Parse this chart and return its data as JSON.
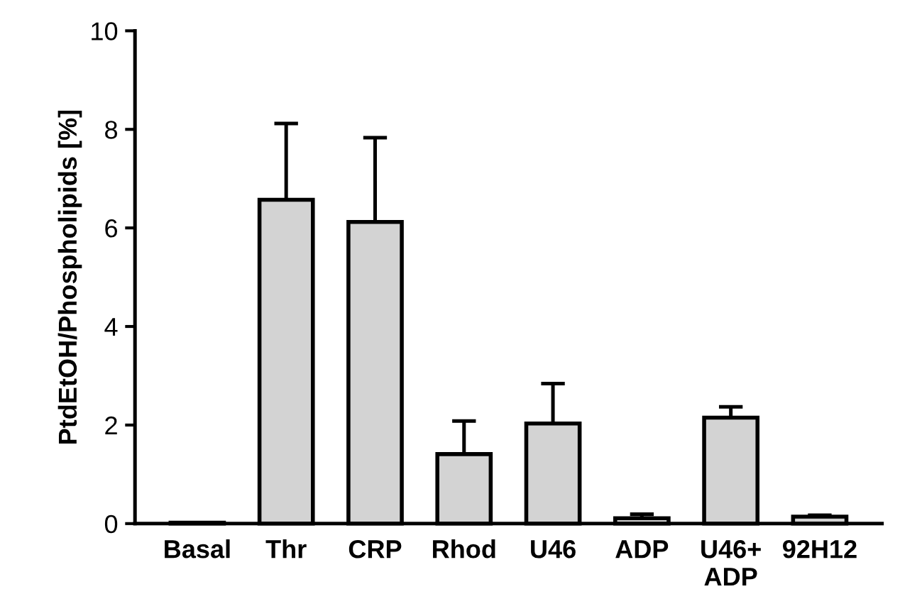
{
  "chart_data": {
    "type": "bar",
    "ylabel": "PtdEtOH/Phospholipids [%]",
    "categories": [
      "Basal",
      "Thr",
      "CRP",
      "Rhod",
      "U46",
      "ADP",
      "U46+\nADP",
      "92H12"
    ],
    "values": [
      0.02,
      6.57,
      6.12,
      1.41,
      2.03,
      0.11,
      2.15,
      0.14
    ],
    "errors": [
      null,
      [
        6.57,
        8.12
      ],
      [
        6.12,
        7.83
      ],
      [
        1.41,
        2.08
      ],
      [
        2.03,
        2.84
      ],
      [
        0.11,
        0.19
      ],
      [
        2.15,
        2.37
      ],
      [
        0.14,
        0.17
      ]
    ],
    "color": "#d3d3d3",
    "ylim": [
      0,
      10
    ],
    "yticks": [
      0,
      2,
      4,
      6,
      8,
      10
    ],
    "grid": false,
    "legend": false
  }
}
